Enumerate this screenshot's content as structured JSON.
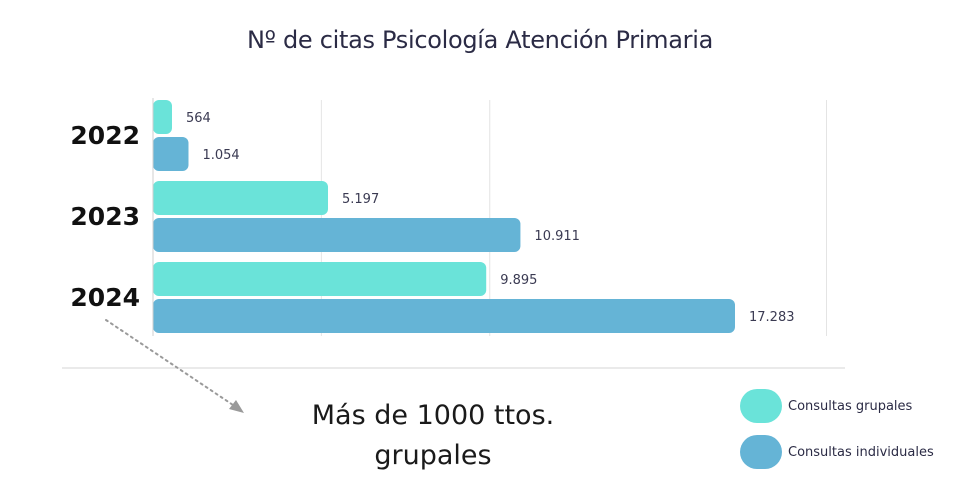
{
  "chart_data": {
    "type": "bar",
    "orientation": "horizontal",
    "title": "Nº de citas Psicología Atención Primaria",
    "categories": [
      "2022",
      "2023",
      "2024"
    ],
    "series": [
      {
        "name": "Consultas grupales",
        "values": [
          564,
          5197,
          9895
        ],
        "labels": [
          "564",
          "5.197",
          "9.895"
        ],
        "color": "#6ae3d9"
      },
      {
        "name": "Consultas individuales",
        "values": [
          1054,
          10911,
          17283
        ],
        "labels": [
          "1.054",
          "10.911",
          "17.283"
        ],
        "color": "#65b4d6"
      }
    ],
    "xlim": [
      0,
      20000
    ],
    "grid": true,
    "legend_position": "bottom-right"
  },
  "annotation": {
    "line1": "Más de 1000 ttos.",
    "line2": "grupales"
  }
}
